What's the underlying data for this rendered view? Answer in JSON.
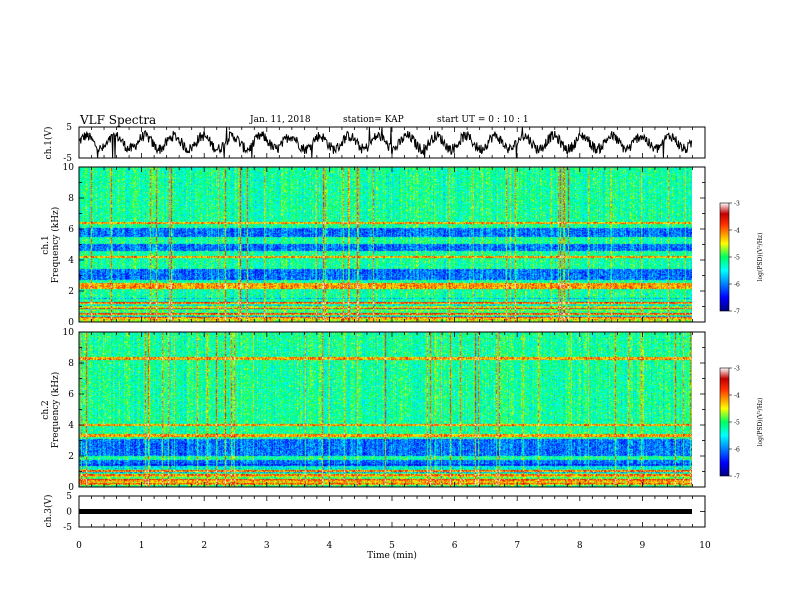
{
  "header": {
    "title": "VLF Spectra",
    "date": "Jan. 11, 2018",
    "station": "station= KAP",
    "start": "start UT =  0 : 10 : 1"
  },
  "chart_data": [
    {
      "type": "line",
      "ylabel": "ch.1(V)",
      "ylim": [
        -5,
        5
      ],
      "yticks": [
        "5",
        "-5"
      ],
      "xlim": [
        0,
        10
      ],
      "series_color": "#000000",
      "description_of_values": "noisy waveform oscillating roughly between -4 and 4 V",
      "amplitude_V": 3.5,
      "cycles": 21
    },
    {
      "type": "heatmap",
      "ylabel": "ch.1\nFrequency (kHz)",
      "ylim": [
        0,
        10
      ],
      "yticks": [
        "0",
        "2",
        "4",
        "6",
        "8",
        "10"
      ],
      "xlim": [
        0,
        9.8
      ],
      "colorbar": {
        "label": "log(PSD)(V²/Hz)",
        "range": [
          -7,
          -3
        ],
        "ticks": [
          "-3",
          "-4",
          "-5",
          "-6",
          "-7"
        ]
      },
      "dark_bands_kHz": [
        [
          2.7,
          3.4
        ],
        [
          5.5,
          6.1
        ],
        [
          4.6,
          5.0
        ]
      ],
      "bright_lines_kHz": [
        0.2,
        0.5,
        0.9,
        1.2,
        2.2,
        2.4,
        4.2,
        6.4
      ]
    },
    {
      "type": "heatmap",
      "ylabel": "ch.2\nFrequency (kHz)",
      "ylim": [
        0,
        10
      ],
      "yticks": [
        "0",
        "2",
        "4",
        "6",
        "8",
        "10"
      ],
      "xlim": [
        0,
        9.8
      ],
      "colorbar": {
        "label": "log(PSD)(V²/Hz)",
        "range": [
          -7,
          -3
        ],
        "ticks": [
          "-3",
          "-4",
          "-5",
          "-6",
          "-7"
        ]
      },
      "dark_bands_kHz": [
        [
          2.0,
          3.1
        ],
        [
          1.3,
          1.7
        ]
      ],
      "bright_lines_kHz": [
        0.2,
        0.4,
        0.7,
        1.0,
        3.3,
        4.0,
        8.3
      ]
    },
    {
      "type": "line",
      "ylabel": "ch.3(V)",
      "ylim": [
        -5,
        5
      ],
      "yticks": [
        "5",
        "0",
        "-5"
      ],
      "xlim": [
        0,
        9.8
      ],
      "constant_value_V": 0,
      "series_color": "#000000"
    }
  ],
  "xaxis": {
    "label": "Time (min)",
    "ticks": [
      "0",
      "1",
      "2",
      "3",
      "4",
      "5",
      "6",
      "7",
      "8",
      "9",
      "10"
    ],
    "range": [
      0,
      10
    ]
  }
}
